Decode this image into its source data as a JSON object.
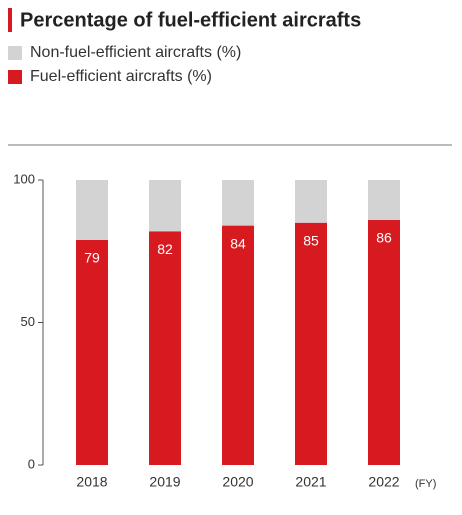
{
  "chart_data": {
    "type": "stacked_bar",
    "title": "Percentage of fuel-efficient aircrafts",
    "categories": [
      "2018",
      "2019",
      "2020",
      "2021",
      "2022"
    ],
    "x_unit": "(FY)",
    "series": [
      {
        "name": "Fuel-efficient aircrafts (%)",
        "color": "#d71a20",
        "values": [
          79,
          82,
          84,
          85,
          86
        ]
      },
      {
        "name": "Non-fuel-efficient aircrafts (%)",
        "color": "#d3d3d3",
        "values": [
          21,
          18,
          16,
          15,
          14
        ]
      }
    ],
    "data_labels_series": 0,
    "ylim": [
      0,
      100
    ],
    "yticks": [
      0,
      50,
      100
    ]
  }
}
